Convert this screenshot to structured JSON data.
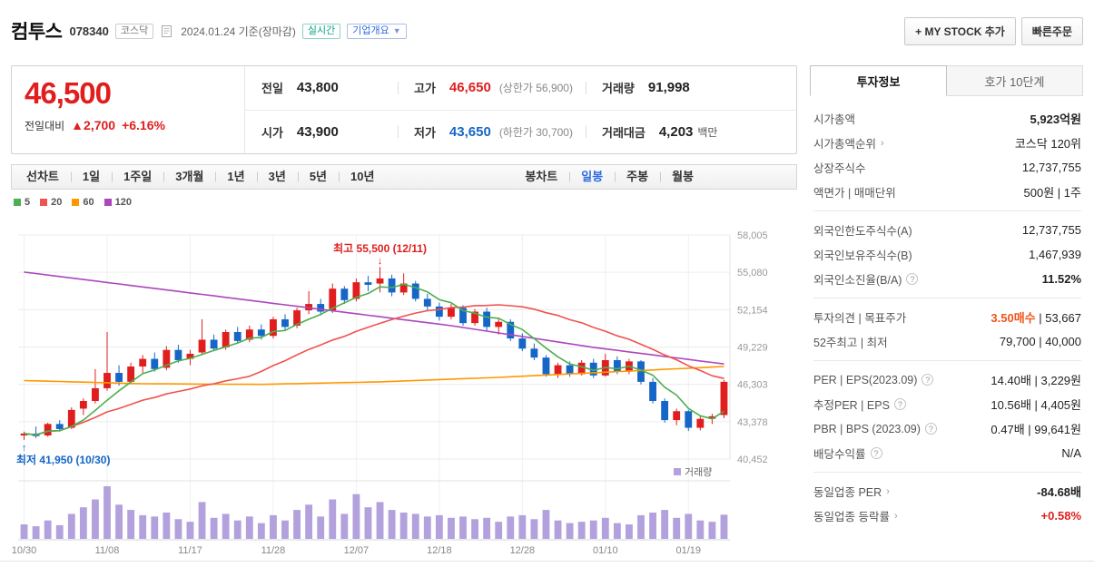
{
  "header": {
    "stock_name": "컴투스",
    "stock_code": "078340",
    "market_badge": "코스닥",
    "date_info": "2024.01.24 기준(장마감)",
    "realtime_badge": "실시간",
    "company_overview": "기업개요",
    "my_stock_button": "+ MY STOCK 추가",
    "quick_order_button": "빠른주문"
  },
  "price": {
    "current": "46,500",
    "change_label": "전일대비",
    "change_arrow": "▲",
    "change_value": "2,700",
    "change_percent": "+6.16%",
    "prev_close_label": "전일",
    "prev_close": "43,800",
    "high_label": "고가",
    "high": "46,650",
    "upper_limit": "(상한가 56,900)",
    "volume_label": "거래량",
    "volume": "91,998",
    "open_label": "시가",
    "open": "43,900",
    "low_label": "저가",
    "low": "43,650",
    "lower_limit": "(하한가 30,700)",
    "trade_value_label": "거래대금",
    "trade_value": "4,203",
    "trade_value_unit": "백만"
  },
  "chart_tabs": {
    "line_group": [
      "선차트",
      "1일",
      "1주일",
      "3개월",
      "1년",
      "3년",
      "5년",
      "10년"
    ],
    "candle_group_label": "봉차트",
    "candle_tabs": [
      "일봉",
      "주봉",
      "월봉"
    ],
    "selected": "일봉"
  },
  "chart_data": {
    "type": "candlestick",
    "title": "컴투스 일봉 차트",
    "volume_legend": "거래량",
    "legend": [
      {
        "label": "5",
        "color": "#4caf50"
      },
      {
        "label": "20",
        "color": "#ef5350"
      },
      {
        "label": "60",
        "color": "#ff9800"
      },
      {
        "label": "120",
        "color": "#ab47bc"
      }
    ],
    "colors": {
      "up": "#e01e1e",
      "down": "#1666c8",
      "ma5": "#4caf50",
      "ma20": "#ef5350",
      "ma60": "#ff9800",
      "ma120": "#ab47bc",
      "volume": "#b3a1dd"
    },
    "y_ticks": [
      58005,
      55080,
      52154,
      49229,
      46303,
      43378,
      40452
    ],
    "y_tick_labels": [
      "58,005",
      "55,080",
      "52,154",
      "49,229",
      "46,303",
      "43,378",
      "40,452"
    ],
    "x_tick_labels": [
      "10/30",
      "11/08",
      "11/17",
      "11/28",
      "12/07",
      "12/18",
      "12/28",
      "01/10",
      "01/19"
    ],
    "x_tick_indices": [
      0,
      7,
      14,
      21,
      28,
      35,
      42,
      49,
      56
    ],
    "annotations": {
      "high": {
        "text": "최고 55,500 (12/11)",
        "index": 30,
        "price": 55500
      },
      "low": {
        "text": "최저 41,950 (10/30)",
        "index": 0,
        "price": 41950
      }
    },
    "candles": [
      [
        "10/30",
        42300,
        42600,
        41950,
        42450,
        55000
      ],
      [
        "10/31",
        42450,
        43000,
        42100,
        42250,
        48000
      ],
      [
        "11/01",
        42300,
        43300,
        42200,
        43200,
        70000
      ],
      [
        "11/02",
        43200,
        43500,
        42600,
        42800,
        52000
      ],
      [
        "11/03",
        42900,
        44500,
        42800,
        44300,
        95000
      ],
      [
        "11/06",
        44400,
        45200,
        43900,
        45000,
        120000
      ],
      [
        "11/07",
        45000,
        47500,
        44800,
        46000,
        150000
      ],
      [
        "11/08",
        46000,
        50400,
        45800,
        47200,
        200000
      ],
      [
        "11/09",
        47200,
        47800,
        46200,
        46500,
        130000
      ],
      [
        "11/10",
        46500,
        48000,
        46300,
        47700,
        110000
      ],
      [
        "11/13",
        47700,
        48600,
        47200,
        48300,
        90000
      ],
      [
        "11/14",
        48300,
        48800,
        47300,
        47500,
        85000
      ],
      [
        "11/15",
        47600,
        49300,
        47400,
        49000,
        100000
      ],
      [
        "11/16",
        49000,
        49400,
        48000,
        48200,
        75000
      ],
      [
        "11/17",
        48300,
        49000,
        47800,
        48700,
        65000
      ],
      [
        "11/20",
        48800,
        51400,
        48600,
        49800,
        140000
      ],
      [
        "11/21",
        49800,
        50200,
        48900,
        49100,
        80000
      ],
      [
        "11/22",
        49200,
        50600,
        49000,
        50400,
        95000
      ],
      [
        "11/23",
        50400,
        50800,
        49500,
        49700,
        70000
      ],
      [
        "11/24",
        49800,
        50900,
        49600,
        50600,
        85000
      ],
      [
        "11/27",
        50600,
        51000,
        49800,
        50100,
        60000
      ],
      [
        "11/28",
        50100,
        51600,
        49900,
        51400,
        90000
      ],
      [
        "11/29",
        51400,
        51800,
        50500,
        50800,
        70000
      ],
      [
        "11/30",
        50900,
        52300,
        50700,
        52100,
        110000
      ],
      [
        "12/01",
        52100,
        53600,
        51800,
        52600,
        130000
      ],
      [
        "12/04",
        52600,
        53000,
        51700,
        52000,
        85000
      ],
      [
        "12/05",
        52100,
        54200,
        51900,
        53800,
        150000
      ],
      [
        "12/06",
        53800,
        54000,
        52600,
        52900,
        95000
      ],
      [
        "12/07",
        53000,
        54600,
        52800,
        54300,
        170000
      ],
      [
        "12/08",
        54300,
        54800,
        53600,
        54100,
        120000
      ],
      [
        "12/11",
        54200,
        55500,
        53500,
        54600,
        140000
      ],
      [
        "12/12",
        54600,
        54900,
        53200,
        53500,
        110000
      ],
      [
        "12/13",
        53500,
        55000,
        53300,
        54200,
        100000
      ],
      [
        "12/14",
        54200,
        54400,
        52800,
        53000,
        95000
      ],
      [
        "12/15",
        53000,
        53400,
        52100,
        52400,
        85000
      ],
      [
        "12/18",
        52400,
        52700,
        51300,
        51600,
        90000
      ],
      [
        "12/19",
        51600,
        52600,
        51400,
        52300,
        80000
      ],
      [
        "12/20",
        52300,
        52500,
        50900,
        51100,
        85000
      ],
      [
        "12/21",
        51100,
        52200,
        50900,
        52000,
        75000
      ],
      [
        "12/22",
        52000,
        52300,
        50500,
        50800,
        80000
      ],
      [
        "12/26",
        50800,
        51500,
        50200,
        51200,
        65000
      ],
      [
        "12/27",
        51200,
        51400,
        49700,
        49900,
        85000
      ],
      [
        "12/28",
        49900,
        50300,
        48900,
        49100,
        90000
      ],
      [
        "01/02",
        49100,
        49500,
        48200,
        48400,
        75000
      ],
      [
        "01/03",
        48400,
        48600,
        46900,
        47100,
        110000
      ],
      [
        "01/04",
        47100,
        48000,
        46800,
        47800,
        70000
      ],
      [
        "01/05",
        47800,
        48100,
        46900,
        47100,
        60000
      ],
      [
        "01/08",
        47100,
        48200,
        47000,
        48000,
        65000
      ],
      [
        "01/09",
        48000,
        48300,
        46800,
        47000,
        70000
      ],
      [
        "01/10",
        47000,
        48700,
        46900,
        48200,
        80000
      ],
      [
        "01/11",
        48200,
        48500,
        47100,
        47300,
        60000
      ],
      [
        "01/12",
        47300,
        48300,
        47100,
        48100,
        55000
      ],
      [
        "01/15",
        48100,
        48200,
        46300,
        46500,
        90000
      ],
      [
        "01/16",
        46500,
        46800,
        44800,
        45000,
        100000
      ],
      [
        "01/17",
        45000,
        45200,
        43300,
        43500,
        110000
      ],
      [
        "01/18",
        43500,
        44400,
        43100,
        44200,
        80000
      ],
      [
        "01/19",
        44200,
        44300,
        42650,
        42900,
        95000
      ],
      [
        "01/22",
        42900,
        43800,
        42700,
        43600,
        70000
      ],
      [
        "01/23",
        43600,
        44000,
        43200,
        43800,
        65000
      ],
      [
        "01/24",
        43900,
        46650,
        43650,
        46500,
        91998
      ]
    ],
    "ma60_points": [
      [
        0,
        46600
      ],
      [
        10,
        46350
      ],
      [
        20,
        46300
      ],
      [
        30,
        46500
      ],
      [
        40,
        46850
      ],
      [
        50,
        47300
      ],
      [
        59,
        47700
      ]
    ],
    "ma120_points": [
      [
        0,
        55100
      ],
      [
        12,
        53700
      ],
      [
        24,
        52300
      ],
      [
        36,
        50900
      ],
      [
        48,
        49200
      ],
      [
        59,
        47900
      ]
    ]
  },
  "sidebar": {
    "tabs": [
      {
        "label": "투자정보",
        "active": true
      },
      {
        "label": "호가 10단계",
        "active": false
      }
    ],
    "groups": [
      [
        {
          "label": "시가총액",
          "value": "5,923억원",
          "bold": true
        },
        {
          "label": "시가총액순위",
          "arrow": true,
          "value": "코스닥 120위"
        },
        {
          "label": "상장주식수",
          "value": "12,737,755"
        },
        {
          "label": "액면가 | 매매단위",
          "value": "500원 | 1주"
        }
      ],
      [
        {
          "label": "외국인한도주식수(A)",
          "value": "12,737,755"
        },
        {
          "label": "외국인보유주식수(B)",
          "value": "1,467,939"
        },
        {
          "label": "외국인소진율(B/A)",
          "help": true,
          "value": "11.52%",
          "bold": true
        }
      ],
      [
        {
          "label": "투자의견 | 목표주가",
          "value": "3.50매수",
          "value_class": "accent",
          "suffix": " | 53,667"
        },
        {
          "label": "52주최고 | 최저",
          "value": "79,700 | 40,000"
        }
      ],
      [
        {
          "label": "PER | EPS(2023.09)",
          "help": true,
          "value": "14.40배 | 3,229원"
        },
        {
          "label": "추정PER | EPS",
          "help": true,
          "value": "10.56배 | 4,405원"
        },
        {
          "label": "PBR | BPS (2023.09)",
          "help": true,
          "value": "0.47배 | 99,641원"
        },
        {
          "label": "배당수익률",
          "help": true,
          "value": "N/A"
        }
      ],
      [
        {
          "label": "동일업종 PER",
          "arrow": true,
          "value": "-84.68배",
          "bold": true
        },
        {
          "label": "동일업종 등락률",
          "arrow": true,
          "value": "+0.58%",
          "value_class": "up-text"
        }
      ]
    ]
  }
}
